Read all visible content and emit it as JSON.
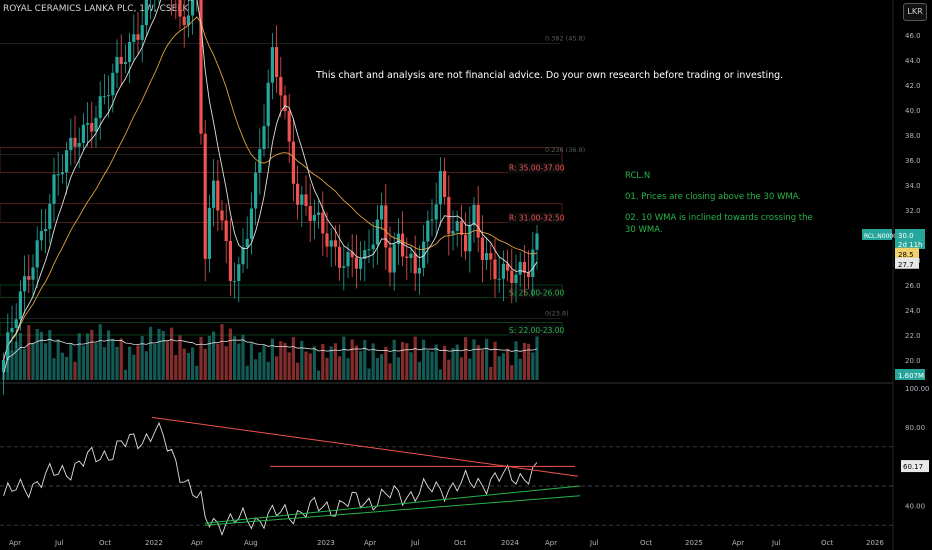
{
  "header": {
    "symbol_title": "ROYAL CERAMICS LANKA PLC, 1W, CSELK",
    "currency": "LKR"
  },
  "disclaimer": "This chart and analysis are not financial advice. Do your own research before trading or investing.",
  "analysis": {
    "ticker": "RCL.N",
    "point1": "01. Prices are closing above the 30 WMA.",
    "point2": "02. 10 WMA is inclined towards crossing the 30 WMA."
  },
  "colors": {
    "bull": "#26a69a",
    "bear": "#ef5350",
    "resistance": "#ef5350",
    "support": "#26b34a",
    "wma10": "#e0e0e0",
    "wma30": "#e0a040",
    "rsi": "#e0e0e0"
  },
  "chart_data": [
    {
      "type": "candlestick",
      "title": "ROYAL CERAMICS LANKA PLC, 1W, CSELK",
      "ylim": [
        18.4,
        48.0
      ],
      "y_ticks": [
        "20.0",
        "22.0",
        "24.0",
        "26.0",
        "28.0",
        "30.0",
        "32.0",
        "34.0",
        "36.0",
        "38.0",
        "40.0",
        "42.0",
        "44.0",
        "46.0"
      ],
      "x_ticks": [
        "Apr",
        "Jul",
        "Oct",
        "2022",
        "Apr",
        "Aug",
        "2023",
        "Apr",
        "Jul",
        "Oct",
        "2024",
        "Apr",
        "Jul",
        "Oct",
        "2025",
        "Apr",
        "Jul",
        "Oct",
        "2026"
      ],
      "price_labels": {
        "symbol": "RCL.N0000",
        "last": "30.0",
        "countdown": "2d 11h",
        "wma30": "28.5",
        "wma10": "27.7",
        "volume": "1.607M"
      },
      "zones": [
        {
          "label": "R: 35.00-37.00",
          "low": 35.0,
          "high": 37.0,
          "kind": "resistance"
        },
        {
          "label": "R: 31.00-32.50",
          "low": 31.0,
          "high": 32.5,
          "kind": "resistance"
        },
        {
          "label": "S: 25.00-26.00",
          "low": 25.0,
          "high": 26.0,
          "kind": "support"
        },
        {
          "label": "S: 22.00-23.00",
          "low": 22.0,
          "high": 23.0,
          "kind": "support"
        }
      ],
      "fib_labels": [
        {
          "label": "0.382 (45.8)",
          "value": 45.8
        },
        {
          "label": "0.236 (36.9)",
          "value": 36.9
        },
        {
          "label": "0(23.8)",
          "value": 23.8
        }
      ]
    },
    {
      "type": "line",
      "name": "RSI",
      "ylim": [
        25,
        100
      ],
      "y_ticks": [
        "40.00",
        "60.17",
        "80.00",
        "100.00"
      ],
      "levels": [
        70,
        50,
        30
      ],
      "last_value": "60.17"
    }
  ]
}
